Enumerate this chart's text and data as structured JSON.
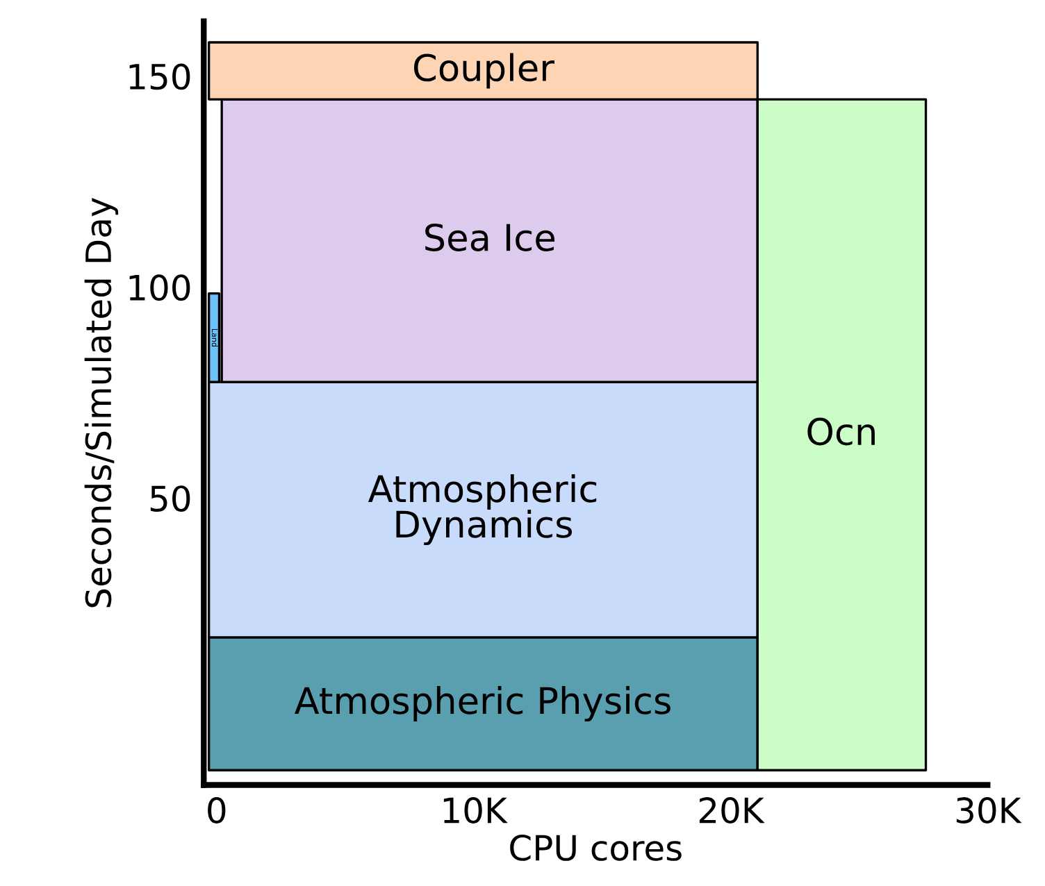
{
  "chart_data": {
    "type": "area",
    "xlabel": "CPU cores",
    "ylabel": "Seconds/Simulated Day",
    "xlim": [
      -0.5,
      30
    ],
    "xticks": [
      0,
      {
        "value": 10,
        "label": "10K"
      },
      {
        "value": 20,
        "label": "20K"
      },
      {
        "value": 30,
        "label": "30K"
      }
    ],
    "ylim": [
      -18,
      163
    ],
    "yticks": [
      50,
      100,
      150
    ],
    "grid": false,
    "legend": false,
    "series": [
      {
        "name": "Atmospheric Physics",
        "color": "#5a9faf",
        "x": [
          -0.3,
          -0.3,
          21.05,
          21.05,
          -0.3
        ],
        "values": [
          -14.5,
          17,
          17,
          -14.5,
          -14.5
        ]
      },
      {
        "name": "Atmospheric\nDynamics",
        "color": "#c9dbfb",
        "x": [
          -0.3,
          -0.3,
          21.05,
          21.05,
          -0.3
        ],
        "values": [
          17,
          77.5,
          77.5,
          17,
          17
        ]
      },
      {
        "name": "Land",
        "color": "#6cc2f8",
        "x": [
          -0.3,
          -0.3,
          0.1,
          0.1,
          -0.3
        ],
        "values": [
          77.5,
          98.5,
          98.5,
          77.5,
          77.5
        ]
      },
      {
        "name": "Sea Ice",
        "color": "#dccbec",
        "x": [
          0.2,
          0.2,
          21.05,
          21.05,
          0.2
        ],
        "values": [
          77.5,
          144.5,
          144.5,
          77.5,
          77.5
        ]
      },
      {
        "name": "Coupler",
        "color": "#fdd5b4",
        "x": [
          -0.3,
          -0.3,
          21.05,
          21.05,
          -0.3
        ],
        "values": [
          144.5,
          158,
          158,
          144.5,
          144.5
        ]
      },
      {
        "name": "Ocn",
        "color": "#ccfcc8",
        "x": [
          21.05,
          21.05,
          27.6,
          27.6,
          21.05
        ],
        "values": [
          -14.5,
          144.5,
          144.5,
          -14.5,
          -14.5
        ]
      }
    ]
  }
}
